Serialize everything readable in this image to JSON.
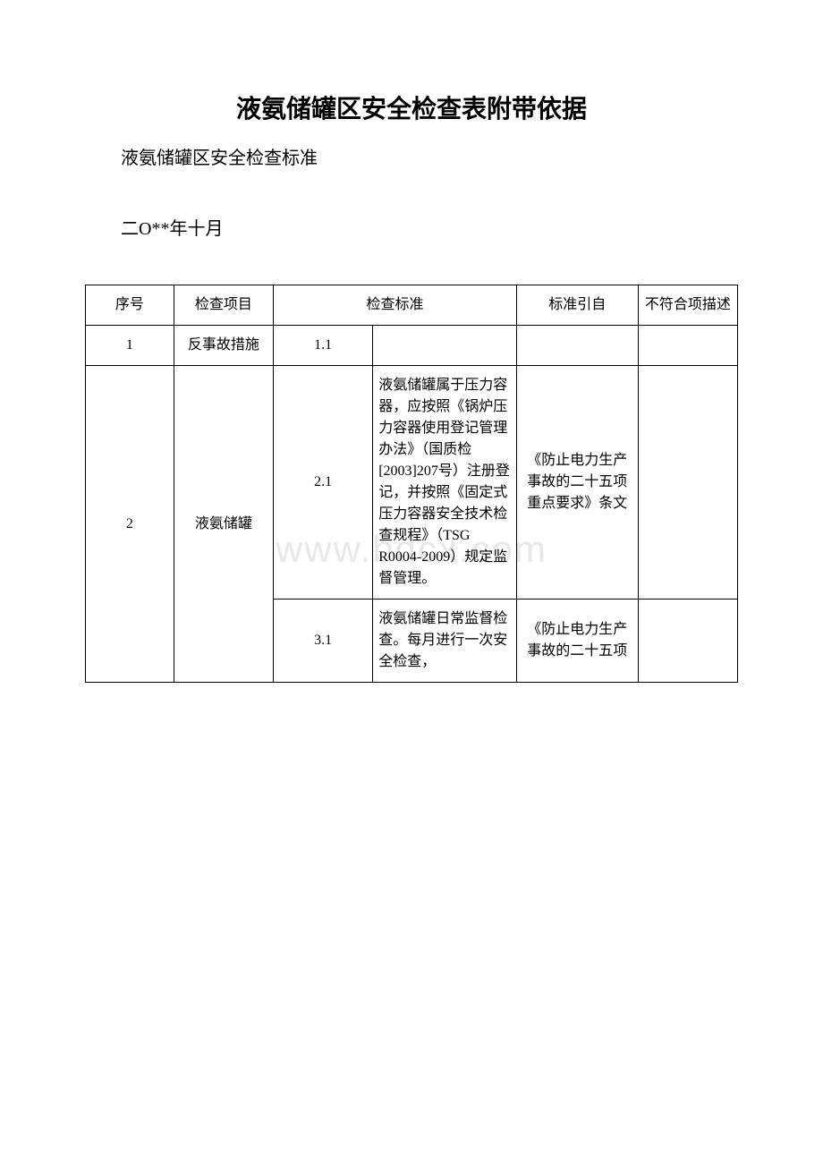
{
  "document": {
    "title": "液氨储罐区安全检查表附带依据",
    "subtitle": "液氨储罐区安全检查标准",
    "date": "二O**年十月",
    "watermark": "www.bdcx.com"
  },
  "table": {
    "columns": {
      "seq": "序号",
      "item": "检查项目",
      "standard": "检查标准",
      "reference": "标准引自",
      "nonconformance": "不符合项描述"
    },
    "column_widths": {
      "seq": 80,
      "item": 90,
      "std_num": 90,
      "std_text": 130,
      "ref": 110,
      "nonconf": 90
    },
    "border_color": "#000000",
    "font_size": 16,
    "rows": [
      {
        "seq": "1",
        "item": "反事故措施",
        "std_num": "1.1",
        "std_text": "",
        "ref": "",
        "nonconf": "",
        "rowspan_item": 1
      },
      {
        "seq": "2",
        "item": "液氨储罐",
        "std_num": "2.1",
        "std_text": "液氨储罐属于压力容器，应按照《锅炉压力容器使用登记管理办法》（国质检[2003]207号）注册登记，并按照《固定式压力容器安全技术检查规程》（TSG R0004-2009）规定监督管理。",
        "ref": "《防止电力生产事故的二十五项重点要求》条文",
        "nonconf": "",
        "rowspan_item": 2,
        "rowspan_seq": 2
      },
      {
        "std_num": "3.1",
        "std_text": "液氨储罐日常监督检查。每月进行一次安全检查，",
        "ref": "《防止电力生产事故的二十五项",
        "nonconf": ""
      }
    ]
  },
  "styling": {
    "background_color": "#ffffff",
    "text_color": "#000000",
    "title_fontsize": 28,
    "body_fontsize": 20,
    "table_fontsize": 16,
    "watermark_color": "#e8e8e8",
    "font_family": "SimSun"
  }
}
